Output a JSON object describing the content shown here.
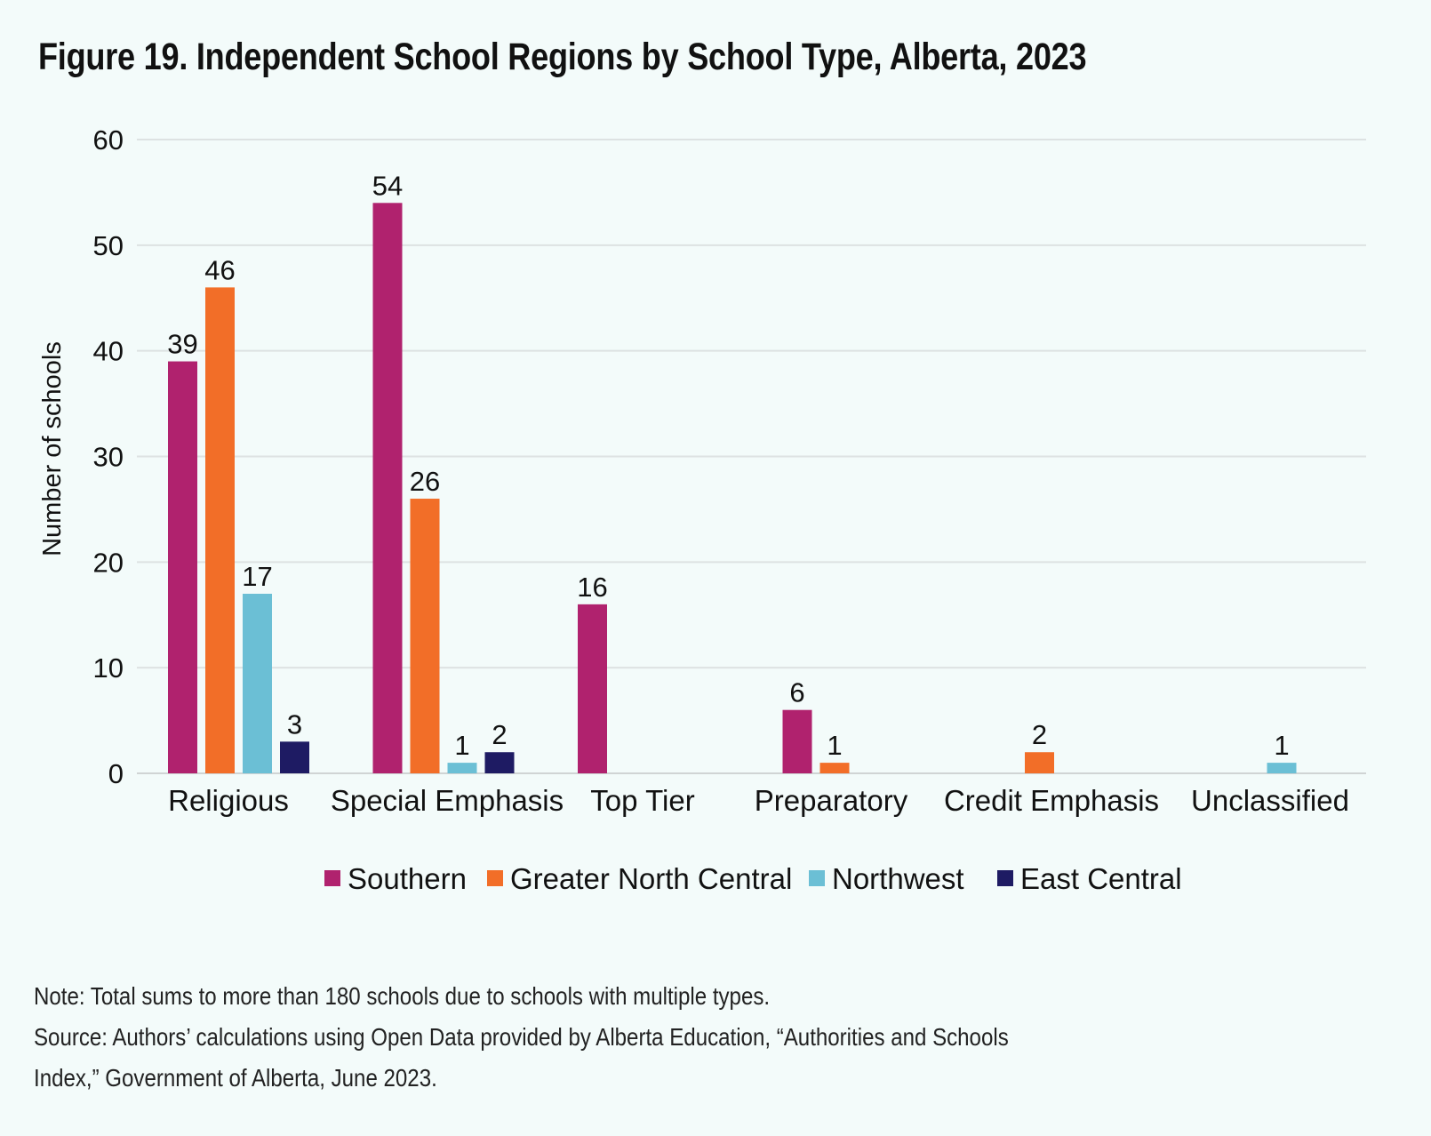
{
  "title": "Figure 19. Independent School Regions by School Type, Alberta, 2023",
  "notes": {
    "note": "Note: Total sums to more than 180 schools due to schools with multiple types.",
    "source_line1": "Source: Authors’ calculations using Open Data provided by Alberta Education, “Authorities and Schools",
    "source_line2": "Index,” Government of Alberta, June 2023."
  },
  "chart_data": {
    "type": "bar",
    "title": "Figure 19. Independent School Regions by School Type, Alberta, 2023",
    "xlabel": "",
    "ylabel": "Number of schools",
    "ylim": [
      0,
      60
    ],
    "yticks": [
      "0",
      "10",
      "20",
      "30",
      "40",
      "50",
      "60"
    ],
    "grid": true,
    "legend_position": "bottom",
    "categories": [
      "Religious",
      "Special Emphasis",
      "Top Tier",
      "Preparatory",
      "Credit Emphasis",
      "Unclassified"
    ],
    "series": [
      {
        "name": "Southern",
        "color": "#b0226e",
        "values": [
          39,
          54,
          16,
          6,
          null,
          null
        ]
      },
      {
        "name": "Greater North Central",
        "color": "#f26e28",
        "values": [
          46,
          26,
          null,
          1,
          2,
          null
        ]
      },
      {
        "name": "Northwest",
        "color": "#6bbfd5",
        "values": [
          17,
          1,
          null,
          null,
          null,
          1
        ]
      },
      {
        "name": "East Central",
        "color": "#1e1b63",
        "values": [
          3,
          2,
          null,
          null,
          null,
          null
        ]
      }
    ]
  }
}
